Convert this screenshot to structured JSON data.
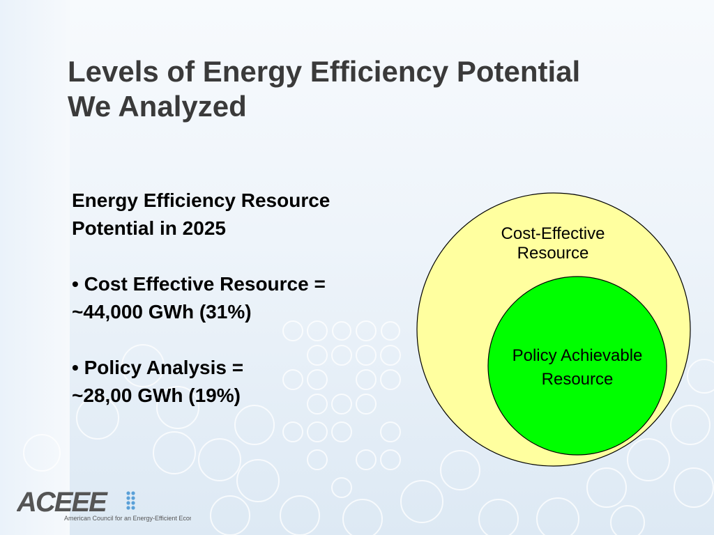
{
  "title": {
    "line1": "Levels of Energy Efficiency Potential",
    "line2": "We Analyzed"
  },
  "body": {
    "heading_line1": "Energy Efficiency Resource",
    "heading_line2": "Potential in 2025",
    "bullet1_line1": "• Cost Effective Resource =",
    "bullet1_line2": "~44,000 GWh (31%)",
    "bullet2_line1": "• Policy Analysis =",
    "bullet2_line2": "~28,00 GWh (19%)"
  },
  "diagram": {
    "outer_label_line1": "Cost-Effective",
    "outer_label_line2": "Resource",
    "inner_label_line1": "Policy Achievable",
    "inner_label_line2": "Resource",
    "outer_color": "#ffff9f",
    "inner_color": "#00ff00"
  },
  "logo": {
    "name": "ACEEE",
    "tagline": "American Council for an Energy-Efficient Economy"
  },
  "colors": {
    "title": "#3a3a3a",
    "logo": "#555555",
    "logo_dots": "#5aa0d8"
  }
}
